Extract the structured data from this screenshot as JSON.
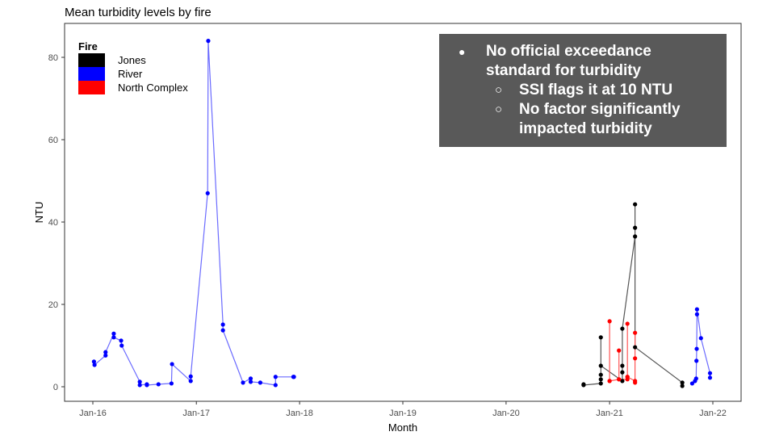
{
  "chart_data": {
    "type": "line",
    "title": "Mean turbidity levels by fire",
    "xlabel": "Month",
    "ylabel": "NTU",
    "xlim": [
      "2015-10-15",
      "2022-03-10"
    ],
    "ylim": [
      -3.5,
      88
    ],
    "x_ticks": [
      "Jan-16",
      "Jan-17",
      "Jan-18",
      "Jan-19",
      "Jan-20",
      "Jan-21",
      "Jan-22"
    ],
    "y_ticks": [
      "0",
      "20",
      "40",
      "60",
      "80"
    ],
    "grid": false,
    "legend": {
      "title": "Fire",
      "placement": "top-left"
    },
    "series": [
      {
        "name": "Jones",
        "color": "#000000",
        "line_color": "#555555",
        "points": [
          [
            "2020-10-01",
            0.6
          ],
          [
            "2020-10-01",
            0.4
          ],
          [
            "2020-12-01",
            0.8
          ],
          [
            "2020-12-01",
            1.8
          ],
          [
            "2020-12-01",
            2.9
          ],
          [
            "2020-12-01",
            12.0
          ],
          [
            "2020-12-01",
            5.1
          ],
          [
            "2021-02-15",
            1.4
          ],
          [
            "2021-02-15",
            3.5
          ],
          [
            "2021-02-15",
            5.1
          ],
          [
            "2021-02-15",
            14.1
          ],
          [
            "2021-04-01",
            36.5
          ],
          [
            "2021-04-01",
            38.6
          ],
          [
            "2021-04-01",
            44.3
          ],
          [
            "2021-04-01",
            9.6
          ],
          [
            "2021-09-15",
            1.0
          ],
          [
            "2021-09-15",
            0.2
          ]
        ]
      },
      {
        "name": "River",
        "color": "#0000ff",
        "line_color": "#6b6bff",
        "points": [
          [
            "2016-01-05",
            6.1
          ],
          [
            "2016-01-07",
            5.3
          ],
          [
            "2016-02-15",
            7.6
          ],
          [
            "2016-02-15",
            8.4
          ],
          [
            "2016-03-15",
            12.9
          ],
          [
            "2016-03-15",
            12.0
          ],
          [
            "2016-04-10",
            11.2
          ],
          [
            "2016-04-12",
            10.0
          ],
          [
            "2016-06-15",
            1.2
          ],
          [
            "2016-06-15",
            0.4
          ],
          [
            "2016-07-10",
            0.6
          ],
          [
            "2016-07-10",
            0.4
          ],
          [
            "2016-08-20",
            0.6
          ],
          [
            "2016-10-05",
            0.8
          ],
          [
            "2016-10-07",
            5.5
          ],
          [
            "2016-12-12",
            1.4
          ],
          [
            "2016-12-12",
            2.5
          ],
          [
            "2017-02-10",
            47.0
          ],
          [
            "2017-02-12",
            84.0
          ],
          [
            "2017-04-05",
            15.1
          ],
          [
            "2017-04-05",
            13.7
          ],
          [
            "2017-06-15",
            1.0
          ],
          [
            "2017-07-12",
            2.0
          ],
          [
            "2017-07-12",
            1.2
          ],
          [
            "2017-08-15",
            1.0
          ],
          [
            "2017-10-08",
            0.4
          ],
          [
            "2017-10-08",
            2.4
          ],
          [
            "2017-12-10",
            2.4
          ],
          [
            "2017-12-12",
            2.4
          ],
          [
            "2021-10-20",
            0.8
          ],
          [
            "2021-10-30",
            1.4
          ],
          [
            "2021-11-03",
            2.0
          ],
          [
            "2021-11-04",
            6.3
          ],
          [
            "2021-11-05",
            9.2
          ],
          [
            "2021-11-06",
            17.6
          ],
          [
            "2021-11-06",
            18.8
          ],
          [
            "2021-11-20",
            11.8
          ],
          [
            "2021-12-22",
            3.3
          ],
          [
            "2021-12-22",
            2.2
          ]
        ]
      },
      {
        "name": "North Complex",
        "color": "#ff0000",
        "line_color": "#ff5555",
        "points": [
          [
            "2021-01-01",
            1.4
          ],
          [
            "2021-01-01",
            15.9
          ],
          [
            "2021-01-01",
            1.4
          ],
          [
            "2021-02-03",
            1.8
          ],
          [
            "2021-02-03",
            8.8
          ],
          [
            "2021-02-03",
            1.8
          ],
          [
            "2021-03-05",
            1.8
          ],
          [
            "2021-03-05",
            2.4
          ],
          [
            "2021-03-05",
            15.3
          ],
          [
            "2021-03-05",
            2.4
          ],
          [
            "2021-04-01",
            1.4
          ],
          [
            "2021-04-01",
            13.1
          ],
          [
            "2021-04-01",
            6.9
          ],
          [
            "2021-04-01",
            1.0
          ]
        ]
      }
    ]
  },
  "callout": {
    "bullets": [
      {
        "text": "No official exceedance standard for turbidity",
        "sub": [
          "SSI flags it at 10 NTU",
          "No factor significantly impacted turbidity"
        ]
      }
    ]
  }
}
